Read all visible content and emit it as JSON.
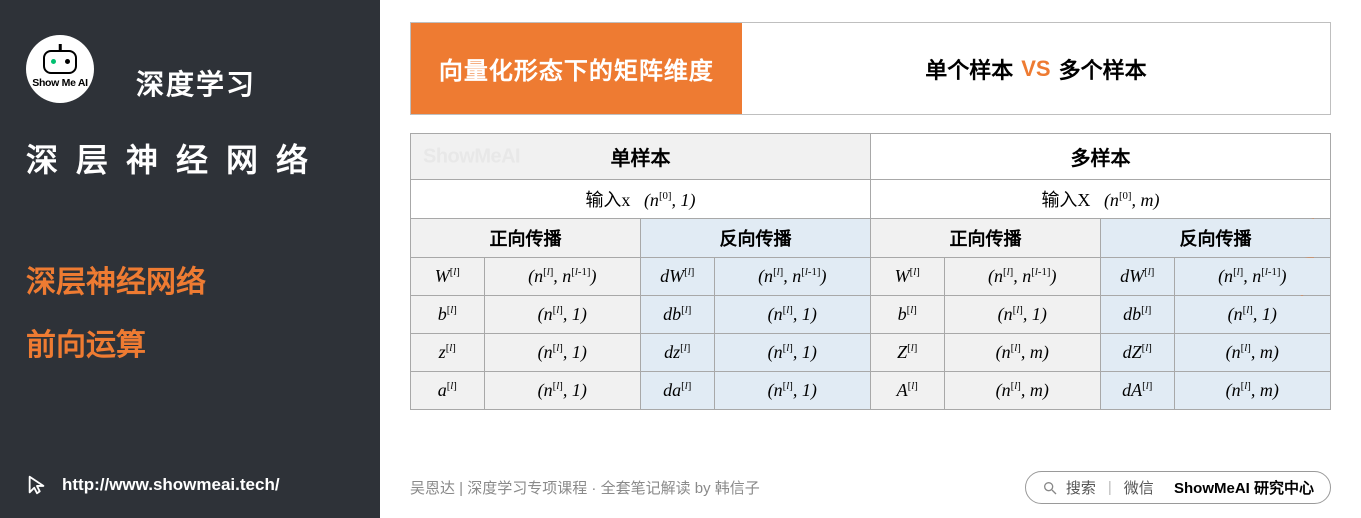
{
  "colors": {
    "sidebar_bg": "#2e3238",
    "accent": "#ee7b32",
    "fwd_bg": "#f1f1f1",
    "bwd_bg": "#e1ebf4",
    "border": "#a8a8a8"
  },
  "sidebar": {
    "logo_text": "Show Me AI",
    "subtitle": "深度学习",
    "title": "深层神经网络",
    "highlight_line1": "深层神经网络",
    "highlight_line2": "前向运算",
    "url": "http://www.showmeai.tech/"
  },
  "header": {
    "left": "向量化形态下的矩阵维度",
    "right_a": "单个样本",
    "right_vs": "VS",
    "right_b": "多个样本"
  },
  "watermark_side": "ShowMeAI",
  "table": {
    "group_single": "单样本",
    "group_multi": "多样本",
    "watermark_cell": "ShowMeAI",
    "input_single_label": "输入x",
    "input_single_dim": "(n[0], 1)",
    "input_multi_label": "输入X",
    "input_multi_dim": "(n[0], m)",
    "sub_fwd": "正向传播",
    "sub_bwd": "反向传播",
    "rows": [
      {
        "fs": "W[l]",
        "fd": "(n[l], n[l-1])",
        "bs": "dW[l]",
        "bd": "(n[l], n[l-1])",
        "mfs": "W[l]",
        "mfd": "(n[l], n[l-1])",
        "mbs": "dW[l]",
        "mbd": "(n[l], n[l-1])"
      },
      {
        "fs": "b[l]",
        "fd": "(n[l], 1)",
        "bs": "db[l]",
        "bd": "(n[l], 1)",
        "mfs": "b[l]",
        "mfd": "(n[l], 1)",
        "mbs": "db[l]",
        "mbd": "(n[l], 1)"
      },
      {
        "fs": "z[l]",
        "fd": "(n[l], 1)",
        "bs": "dz[l]",
        "bd": "(n[l], 1)",
        "mfs": "Z[l]",
        "mfd": "(n[l], m)",
        "mbs": "dZ[l]",
        "mbd": "(n[l], m)"
      },
      {
        "fs": "a[l]",
        "fd": "(n[l], 1)",
        "bs": "da[l]",
        "bd": "(n[l], 1)",
        "mfs": "A[l]",
        "mfd": "(n[l], m)",
        "mbs": "dA[l]",
        "mbd": "(n[l], m)"
      }
    ]
  },
  "footer": {
    "credit": "吴恩达 | 深度学习专项课程 · 全套笔记解读 by 韩信子",
    "search_hint_a": "搜索",
    "search_hint_b": "微信",
    "search_brand": "ShowMeAI 研究中心"
  }
}
